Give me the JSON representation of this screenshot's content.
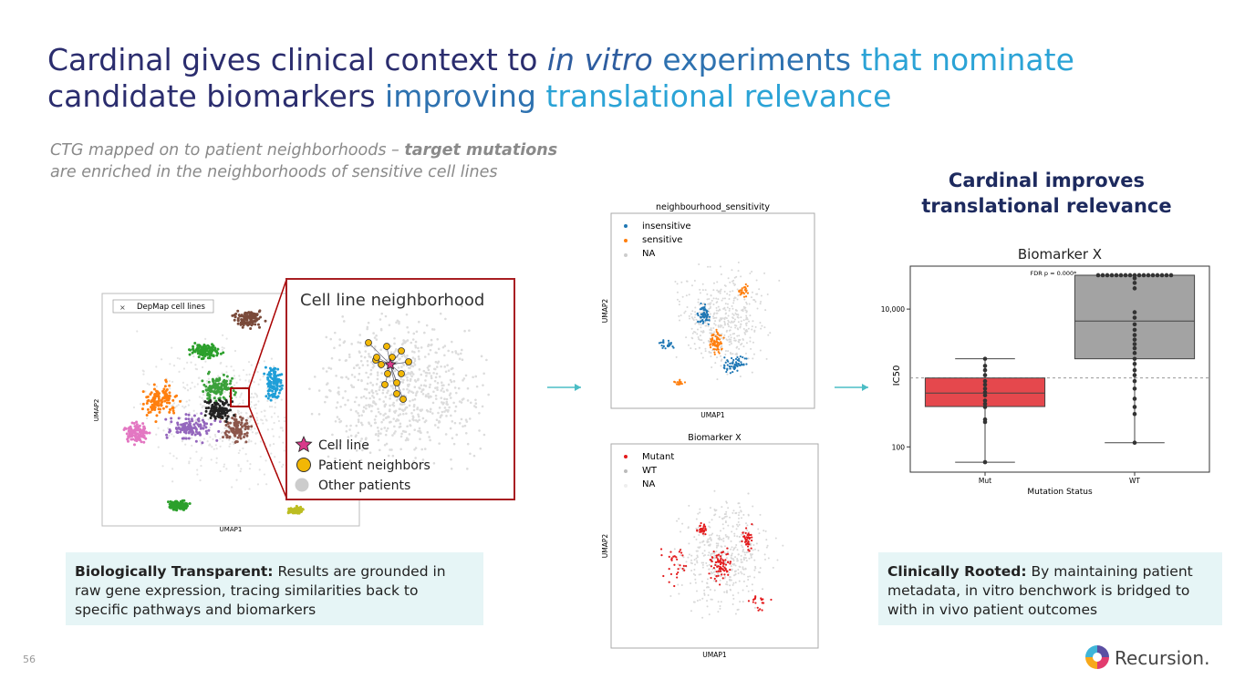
{
  "slide": {
    "title": {
      "lines": [
        [
          {
            "text": "Cardinal gives clinical context to ",
            "color": "#2b2d6e"
          },
          {
            "text": "in vitro",
            "color": "#2e5d9f",
            "italic": true
          },
          {
            "text": " experiments ",
            "color": "#2e72b0"
          },
          {
            "text": "that nominate",
            "color": "#2ba3d6"
          }
        ],
        [
          {
            "text": "candidate biomarkers ",
            "color": "#2b2d6e"
          },
          {
            "text": "improving ",
            "color": "#2e72b0"
          },
          {
            "text": "translational relevance",
            "color": "#2ba3d6"
          }
        ]
      ]
    },
    "subtitle": {
      "line1": "CTG mapped on to patient neighborhoods – ",
      "line1_bold": "target mutations",
      "line2": "are enriched in the neighborhoods of sensitive cell lines"
    },
    "umap_left": {
      "legend": "DepMap cell lines",
      "x_label": "UMAP1",
      "y_label": "UMAP2"
    },
    "inset": {
      "title": "Cell line neighborhood",
      "legend": [
        "Cell line",
        "Patient neighbors",
        "Other patients"
      ]
    },
    "plot_sensitivity": {
      "title": "neighbourhood_sensitivity",
      "x_label": "UMAP1",
      "y_label": "UMAP2",
      "legend": [
        {
          "name": "insensitive",
          "color": "#1f77b4"
        },
        {
          "name": "sensitive",
          "color": "#ff7f0e"
        },
        {
          "name": "NA",
          "color": "#cccccc"
        }
      ]
    },
    "plot_biomarker": {
      "title": "Biomarker X",
      "x_label": "UMAP1",
      "y_label": "UMAP2",
      "legend": [
        {
          "name": "Mutant",
          "color": "#e31a1c"
        },
        {
          "name": "WT",
          "color": "#bbbbbb"
        },
        {
          "name": "NA",
          "color": "#eeeeee"
        }
      ]
    },
    "right_heading": "Cardinal improves translational relevance",
    "left_box": {
      "bold": "Biologically Transparent:",
      "text": " Results are grounded in raw gene expression, tracing similarities back to specific pathways and biomarkers"
    },
    "right_box": {
      "bold": "Clinically Rooted:",
      "text": " By maintaining patient metadata, in vitro benchwork is bridged to with in vivo patient outcomes"
    },
    "page_number": "56",
    "logo": "Recursion."
  },
  "chart_data": {
    "type": "box",
    "title": "Biomarker X",
    "annotation": "FDR p = 0.000*",
    "x_label": "Mutation Status",
    "y_label": "IC50",
    "log_y": true,
    "ylim": [
      43,
      42000
    ],
    "yticks": [
      {
        "value": 100,
        "label": "100"
      },
      {
        "value": 10000,
        "label": "10,000"
      }
    ],
    "reference_line": 1000,
    "categories": [
      "Mut",
      "WT"
    ],
    "colors": [
      "#e5484d",
      "#a3a3a3"
    ],
    "boxes": [
      {
        "whisker_low": 60,
        "q1": 385,
        "median": 605,
        "q3": 1000,
        "whisker_high": 1900
      },
      {
        "whisker_low": 115,
        "q1": 1900,
        "median": 6700,
        "q3": 31000,
        "whisker_high": 31000
      }
    ],
    "points": [
      [
        60,
        230,
        250,
        380,
        420,
        470,
        560,
        620,
        700,
        800,
        900,
        1100,
        1300,
        1500,
        1900
      ],
      [
        115,
        300,
        380,
        500,
        700,
        900,
        1100,
        1300,
        1600,
        1900,
        2300,
        2700,
        3100,
        3600,
        4200,
        5000,
        6000,
        7500,
        9000,
        20000,
        24000,
        28000,
        31000,
        31000,
        31000,
        31000,
        31000,
        31000,
        31000,
        31000,
        31000,
        31000,
        31000,
        31000,
        31000,
        31000,
        31000,
        31000,
        31000
      ]
    ]
  }
}
